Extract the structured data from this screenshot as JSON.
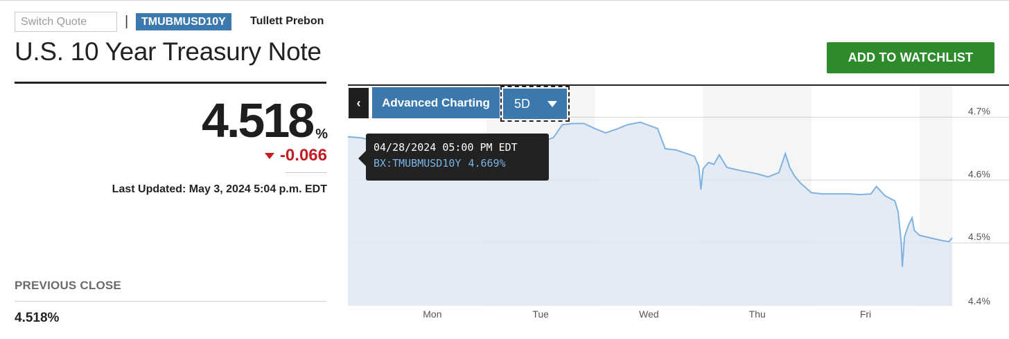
{
  "header": {
    "search_placeholder": "Switch Quote",
    "separator": "|",
    "ticker": "TMUBMUSD10Y",
    "source": "Tullett Prebon",
    "title": "U.S. 10 Year Treasury Note",
    "watchlist_label": "ADD TO WATCHLIST"
  },
  "quote": {
    "price": "4.518",
    "unit": "%",
    "change": "-0.066",
    "last_updated": "Last Updated: May 3, 2024 5:04 p.m. EDT",
    "previous_close_label": "PREVIOUS CLOSE",
    "previous_close_value": "4.518%"
  },
  "colors": {
    "accent": "#3a78ad",
    "watchlist_green": "#2e8b2c",
    "negative": "#c51d24",
    "line": "#7fb2e1",
    "area": "#dfe8f2",
    "band": "#f5f5f5"
  },
  "chart_controls": {
    "collapse_glyph": "‹",
    "advanced_label": "Advanced Charting",
    "range_label": "5D"
  },
  "tooltip": {
    "datetime": "04/28/2024 05:00 PM EDT",
    "series": "BX:TMUBMUSD10Y",
    "value": "4.669%"
  },
  "chart_data": {
    "type": "area",
    "title": "",
    "xlabel": "",
    "ylabel": "",
    "x_ticks": [
      {
        "label": "Mon",
        "pos": 0.5
      },
      {
        "label": "Tue",
        "pos": 1.5
      },
      {
        "label": "Wed",
        "pos": 2.5
      },
      {
        "label": "Thu",
        "pos": 3.5
      },
      {
        "label": "Fri",
        "pos": 4.5
      }
    ],
    "y_ticks": [
      "4.7%",
      "4.6%",
      "4.5%",
      "4.4%"
    ],
    "ylim": [
      4.4,
      4.75
    ],
    "xlim": [
      -0.28,
      5.3
    ],
    "grid": true,
    "series": [
      {
        "values": [
          [
            -0.28,
            4.669
          ],
          [
            -0.15,
            4.667
          ],
          [
            0.0,
            4.66
          ],
          [
            0.1,
            4.64
          ],
          [
            0.2,
            4.628
          ],
          [
            0.3,
            4.625
          ],
          [
            0.45,
            4.622
          ],
          [
            0.55,
            4.624
          ],
          [
            0.7,
            4.62
          ],
          [
            0.8,
            4.617
          ],
          [
            0.9,
            4.618
          ],
          [
            0.95,
            4.612
          ],
          [
            1.0,
            4.61
          ],
          [
            1.1,
            4.608
          ],
          [
            1.2,
            4.612
          ],
          [
            1.28,
            4.618
          ],
          [
            1.33,
            4.65
          ],
          [
            1.38,
            4.628
          ],
          [
            1.43,
            4.665
          ],
          [
            1.5,
            4.67
          ],
          [
            1.55,
            4.663
          ],
          [
            1.62,
            4.668
          ],
          [
            1.7,
            4.688
          ],
          [
            1.8,
            4.69
          ],
          [
            1.9,
            4.69
          ],
          [
            2.0,
            4.682
          ],
          [
            2.1,
            4.675
          ],
          [
            2.2,
            4.681
          ],
          [
            2.3,
            4.688
          ],
          [
            2.42,
            4.692
          ],
          [
            2.5,
            4.687
          ],
          [
            2.58,
            4.682
          ],
          [
            2.65,
            4.65
          ],
          [
            2.75,
            4.648
          ],
          [
            2.85,
            4.642
          ],
          [
            2.92,
            4.638
          ],
          [
            2.96,
            4.622
          ],
          [
            2.98,
            4.585
          ],
          [
            3.0,
            4.618
          ],
          [
            3.05,
            4.628
          ],
          [
            3.1,
            4.625
          ],
          [
            3.15,
            4.64
          ],
          [
            3.22,
            4.62
          ],
          [
            3.35,
            4.615
          ],
          [
            3.5,
            4.61
          ],
          [
            3.6,
            4.605
          ],
          [
            3.7,
            4.612
          ],
          [
            3.76,
            4.642
          ],
          [
            3.8,
            4.62
          ],
          [
            3.85,
            4.605
          ],
          [
            3.9,
            4.595
          ],
          [
            4.0,
            4.58
          ],
          [
            4.1,
            4.578
          ],
          [
            4.2,
            4.578
          ],
          [
            4.35,
            4.578
          ],
          [
            4.45,
            4.577
          ],
          [
            4.55,
            4.578
          ],
          [
            4.6,
            4.59
          ],
          [
            4.68,
            4.575
          ],
          [
            4.77,
            4.567
          ],
          [
            4.8,
            4.55
          ],
          [
            4.83,
            4.5
          ],
          [
            4.84,
            4.462
          ],
          [
            4.86,
            4.51
          ],
          [
            4.9,
            4.53
          ],
          [
            4.93,
            4.54
          ],
          [
            4.95,
            4.52
          ],
          [
            5.0,
            4.512
          ],
          [
            5.1,
            4.508
          ],
          [
            5.2,
            4.504
          ],
          [
            5.27,
            4.502
          ],
          [
            5.3,
            4.508
          ]
        ]
      }
    ]
  }
}
